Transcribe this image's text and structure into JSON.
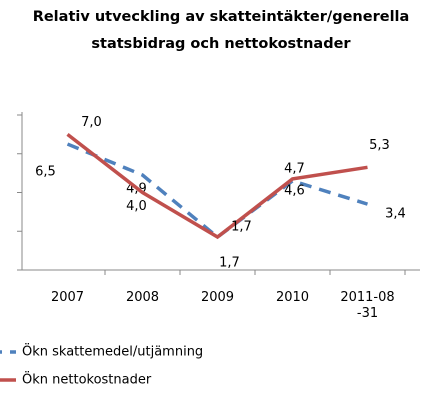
{
  "chart_data": {
    "type": "line",
    "title": "Relativ utveckling av skatteintäkter/generella statsbidrag och nettokostnader",
    "categories": [
      "2007",
      "2008",
      "2009",
      "2010",
      "2011-08-31"
    ],
    "series": [
      {
        "name": "Ökn skattemedel/utjämning",
        "color": "#4f81bd",
        "dashed": true,
        "values": [
          6.5,
          4.9,
          1.7,
          4.6,
          3.4
        ],
        "value_labels": [
          "6,5",
          "4,9",
          "1,7",
          "4,6",
          "3,4"
        ]
      },
      {
        "name": "Ökn nettokostnader",
        "color": "#c0504d",
        "dashed": false,
        "values": [
          7.0,
          4.0,
          1.7,
          4.7,
          5.3
        ],
        "value_labels": [
          "7,0",
          "4,0",
          "1,7",
          "4,7",
          "5,3"
        ]
      }
    ],
    "ylim": [
      0,
      8
    ],
    "yticks": [
      0,
      2,
      4,
      6,
      8
    ],
    "grid": false
  }
}
